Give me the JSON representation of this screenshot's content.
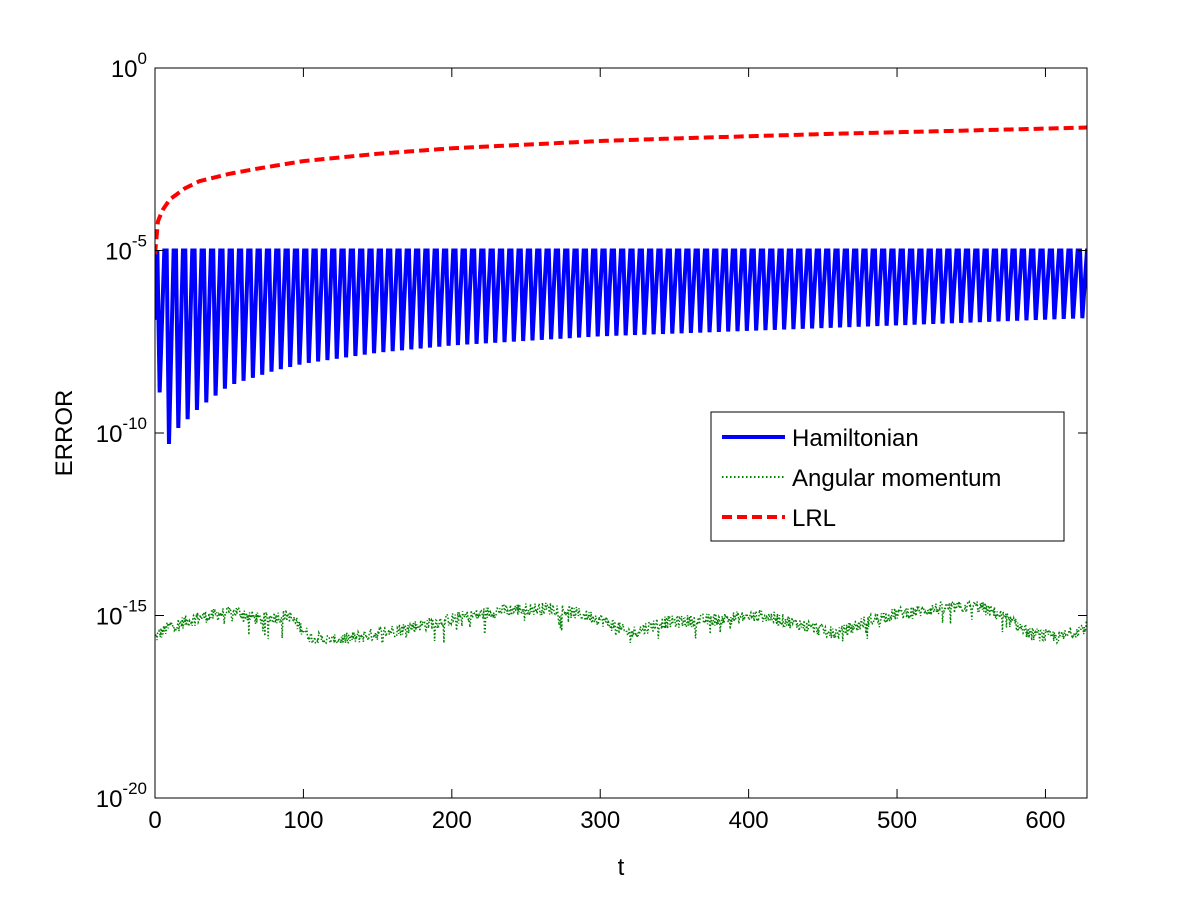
{
  "chart_data": {
    "type": "line",
    "title": "",
    "xlabel": "t",
    "ylabel": "ERROR",
    "xlim": [
      0,
      628
    ],
    "ylim_exponent": [
      -20,
      0
    ],
    "yscale": "log",
    "grid": false,
    "legend_position": "center-right",
    "x_ticks": [
      "0",
      "100",
      "200",
      "300",
      "400",
      "500",
      "600"
    ],
    "y_tick_base": "10",
    "y_tick_exponents": [
      "0",
      "-5",
      "-10",
      "-15",
      "-20"
    ],
    "series": [
      {
        "name": "Hamiltonian",
        "color": "#0000ff",
        "style": "solid",
        "description": "oscillating between ~1e-5 upper bound and a slowly rising lower envelope",
        "upper_log10": -5.0,
        "period": 6.28,
        "lower_envelope": {
          "t": [
            0,
            6,
            12,
            20,
            30,
            50,
            80,
            100,
            150,
            200,
            300,
            400,
            500,
            628
          ],
          "log10": [
            -6.9,
            -10.7,
            -10.0,
            -9.7,
            -9.3,
            -8.7,
            -8.3,
            -8.1,
            -7.8,
            -7.6,
            -7.35,
            -7.2,
            -7.05,
            -6.85
          ]
        }
      },
      {
        "name": "Angular momentum",
        "color": "#008000",
        "style": "dotted",
        "description": "noisy around 1e-15",
        "baseline": {
          "t": [
            0,
            10,
            30,
            55,
            70,
            90,
            105,
            120,
            150,
            175,
            200,
            235,
            270,
            300,
            320,
            340,
            380,
            410,
            440,
            460,
            480,
            500,
            530,
            555,
            570,
            590,
            610,
            628
          ],
          "log10": [
            -15.6,
            -15.3,
            -15.05,
            -14.9,
            -15.1,
            -15.0,
            -15.6,
            -15.7,
            -15.5,
            -15.3,
            -15.1,
            -14.85,
            -14.8,
            -15.1,
            -15.5,
            -15.2,
            -15.1,
            -15.0,
            -15.3,
            -15.5,
            -15.15,
            -14.95,
            -14.8,
            -14.75,
            -15.0,
            -15.5,
            -15.6,
            -15.3
          ]
        }
      },
      {
        "name": "LRL",
        "color": "#ff0000",
        "style": "dashed",
        "description": "monotonically increasing error",
        "points": {
          "t": [
            0,
            2,
            5,
            10,
            20,
            30,
            40,
            50,
            70,
            100,
            150,
            200,
            250,
            300,
            350,
            400,
            450,
            500,
            550,
            600,
            628
          ],
          "log10": [
            -5.1,
            -4.2,
            -3.9,
            -3.6,
            -3.3,
            -3.1,
            -3.0,
            -2.9,
            -2.75,
            -2.55,
            -2.35,
            -2.2,
            -2.1,
            -2.0,
            -1.93,
            -1.87,
            -1.81,
            -1.76,
            -1.71,
            -1.66,
            -1.63
          ]
        }
      }
    ]
  }
}
